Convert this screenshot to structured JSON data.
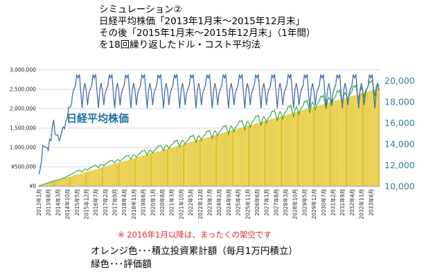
{
  "title_lines": [
    "シミュレーション②",
    "日経平均株価「2013年1月末～2015年12月末」",
    "その後「2015年1月末～2015年12月末」（1年間）",
    "を18回繰り返したドル・コスト平均法"
  ],
  "note": "※ 2016年1月以降は、まったくの架空です",
  "legend_lines": [
    "オレンジ色･･･積立投資累計額（毎月1万円積立）",
    "緑色･･･評価額"
  ],
  "colors": {
    "bar_fill": "#f2dc6b",
    "bar_edge": "#c9a800",
    "value_line": "#3aaa4a",
    "nikkei_line": "#3f6ea8",
    "nikkei_label": "#1f6fa0",
    "right_axis_text": "#2f7f9a",
    "grid": "#d9d9d9",
    "note_text": "#e0262b"
  },
  "chart_data": {
    "type": "bar",
    "series": [
      {
        "name": "",
        "kind": "bar",
        "axis": "left",
        "monthly_contribution": 10000,
        "description": "cumulative contribution"
      },
      {
        "name": "",
        "kind": "line",
        "axis": "left",
        "description": "valuation"
      },
      {
        "name": "日経平均株価",
        "kind": "line",
        "axis": "right"
      }
    ],
    "x_tick_labels": [
      "2013年1月",
      "2013年8月",
      "2014年3月",
      "2014年10月",
      "2015年5月",
      "2015年12月",
      "2016年7月",
      "2017年2月",
      "2017年9月",
      "2018年4月",
      "2018年11月",
      "2019年6月",
      "2020年1月",
      "2020年8月",
      "2021年3月",
      "2021年10月",
      "2022年5月",
      "2022年12月",
      "2023年7月",
      "2024年2月",
      "2024年9月",
      "2025年4月",
      "2025年11月",
      "2026年6月",
      "2027年1月",
      "2027年8月",
      "2028年3月",
      "2028年10月",
      "2029年5月",
      "2029年12月",
      "2030年7月",
      "2031年2月",
      "2031年9月",
      "2032年4月",
      "2032年11月",
      "2033年6月"
    ],
    "x_tick_every_months": 7,
    "months": 252,
    "left_axis": {
      "ticks": [
        "¥0",
        "¥500,000",
        "1,000,000",
        "1,500,000",
        "2,000,000",
        "2,500,000",
        "3,000,000"
      ],
      "min": 0,
      "max": 3000000
    },
    "right_axis": {
      "ticks": [
        "10,000",
        "12,000",
        "14,000",
        "16,000",
        "18,000",
        "20,000"
      ],
      "min": 10000,
      "max": 21000
    },
    "nikkei_2013_2015": [
      11139,
      11560,
      12398,
      13861,
      13774,
      13677,
      13668,
      13388,
      14456,
      14327,
      15662,
      16291,
      14915,
      14841,
      14828,
      14304,
      14632,
      15162,
      15621,
      15425,
      16174,
      16414,
      17460,
      17451,
      17674,
      18798,
      19207,
      19520,
      20563,
      20236,
      20585,
      18890,
      17388,
      19083,
      19747,
      19034
    ],
    "nikkei_2015_cycle": [
      17674,
      18798,
      19207,
      19520,
      20563,
      20236,
      20585,
      18890,
      17388,
      19083,
      19747,
      19034
    ],
    "final_values": {
      "contribution": 2520000,
      "valuation": 2680000
    }
  }
}
